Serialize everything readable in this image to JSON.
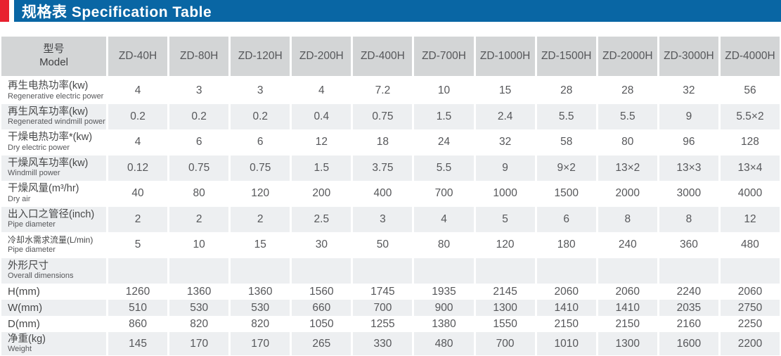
{
  "header": {
    "title": "规格表 Specification Table"
  },
  "colors": {
    "title_bar_blue": "#0966a4",
    "accent_red": "#e8212f",
    "header_cell_gray": "#d3d5d6",
    "row_alt_gray": "#edeff1"
  },
  "table": {
    "model_header": {
      "zh": "型号",
      "en": "Model"
    },
    "columns": [
      "ZD-40H",
      "ZD-80H",
      "ZD-120H",
      "ZD-200H",
      "ZD-400H",
      "ZD-700H",
      "ZD-1000H",
      "ZD-1500H",
      "ZD-2000H",
      "ZD-3000H",
      "ZD-4000H"
    ],
    "rows": [
      {
        "label_zh": "再生电热功率(kw)",
        "label_en": "Regenerative electric power",
        "values": [
          "4",
          "3",
          "3",
          "4",
          "7.2",
          "10",
          "15",
          "28",
          "28",
          "32",
          "56"
        ]
      },
      {
        "label_zh": "再生风车功率(kw)",
        "label_en": "Regenerated windmill power",
        "values": [
          "0.2",
          "0.2",
          "0.2",
          "0.4",
          "0.75",
          "1.5",
          "2.4",
          "5.5",
          "5.5",
          "9",
          "5.5×2"
        ]
      },
      {
        "label_zh": "干燥电热功率*(kw)",
        "label_en": "Dry electric power",
        "values": [
          "4",
          "6",
          "6",
          "12",
          "18",
          "24",
          "32",
          "58",
          "80",
          "96",
          "128"
        ]
      },
      {
        "label_zh": "干燥风车功率(kw)",
        "label_en": "Windmill power",
        "values": [
          "0.12",
          "0.75",
          "0.75",
          "1.5",
          "3.75",
          "5.5",
          "9",
          "9×2",
          "13×2",
          "13×3",
          "13×4"
        ]
      },
      {
        "label_zh": "干燥风量(m³/hr)",
        "label_en": "Dry air",
        "values": [
          "40",
          "80",
          "120",
          "200",
          "400",
          "700",
          "1000",
          "1500",
          "2000",
          "3000",
          "4000"
        ]
      },
      {
        "label_zh": "出入口之管径(inch)",
        "label_en": "Pipe diameter",
        "values": [
          "2",
          "2",
          "2",
          "2.5",
          "3",
          "4",
          "5",
          "6",
          "8",
          "8",
          "12"
        ]
      },
      {
        "label_zh": "冷却水需求流量(L/min)",
        "label_en": "Pipe diameter",
        "values": [
          "5",
          "10",
          "15",
          "30",
          "50",
          "80",
          "120",
          "180",
          "240",
          "360",
          "480"
        ]
      },
      {
        "label_zh": "外形尺寸",
        "label_en": "Overall dimensions",
        "values": [
          "",
          "",
          "",
          "",
          "",
          "",
          "",
          "",
          "",
          "",
          ""
        ]
      },
      {
        "label_zh": "H(mm)",
        "label_en": "",
        "values": [
          "1260",
          "1360",
          "1360",
          "1560",
          "1745",
          "1935",
          "2145",
          "2060",
          "2060",
          "2240",
          "2060"
        ]
      },
      {
        "label_zh": "W(mm)",
        "label_en": "",
        "values": [
          "510",
          "530",
          "530",
          "660",
          "700",
          "900",
          "1300",
          "1410",
          "1410",
          "2035",
          "2750"
        ]
      },
      {
        "label_zh": "D(mm)",
        "label_en": "",
        "values": [
          "860",
          "820",
          "820",
          "1050",
          "1255",
          "1380",
          "1550",
          "2150",
          "2150",
          "2160",
          "2250"
        ]
      },
      {
        "label_zh": "净重(kg)",
        "label_en": "Weight",
        "values": [
          "145",
          "170",
          "170",
          "265",
          "330",
          "480",
          "700",
          "1010",
          "1300",
          "1600",
          "2200"
        ]
      }
    ]
  }
}
